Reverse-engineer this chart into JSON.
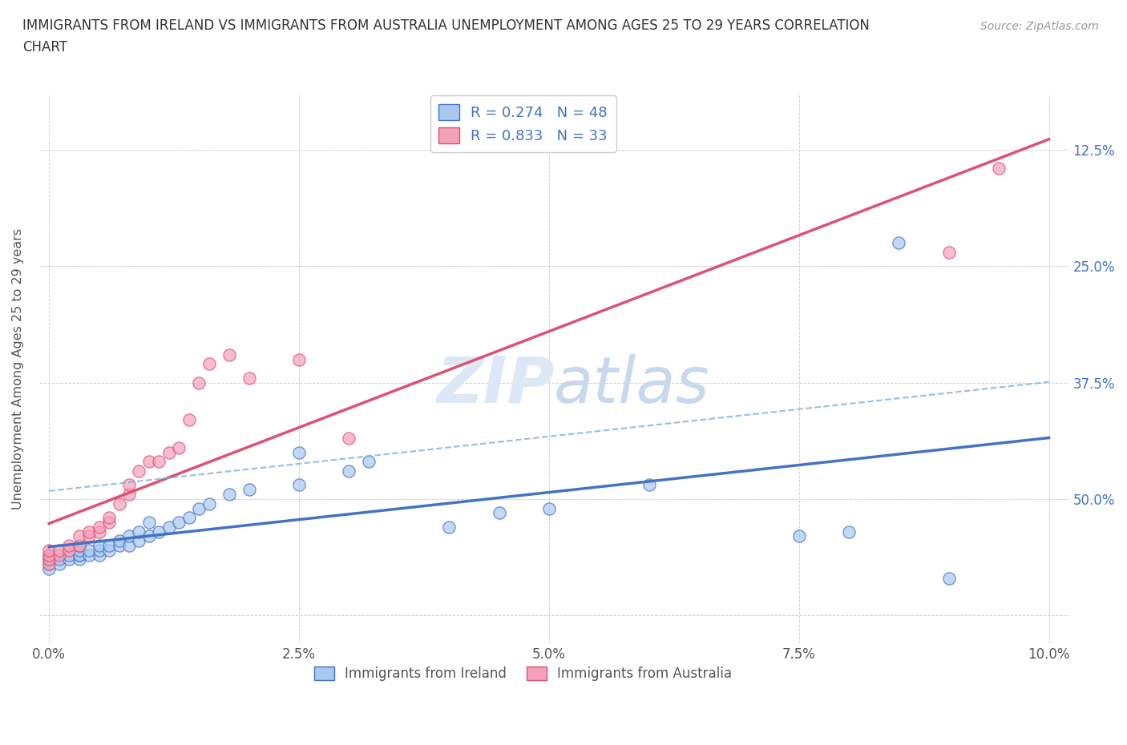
{
  "title_line1": "IMMIGRANTS FROM IRELAND VS IMMIGRANTS FROM AUSTRALIA UNEMPLOYMENT AMONG AGES 25 TO 29 YEARS CORRELATION",
  "title_line2": "CHART",
  "source_text": "Source: ZipAtlas.com",
  "ylabel": "Unemployment Among Ages 25 to 29 years",
  "xticklabels": [
    "0.0%",
    "2.5%",
    "5.0%",
    "7.5%",
    "10.0%"
  ],
  "yticklabels_right": [
    "50.0%",
    "37.5%",
    "25.0%",
    "12.5%"
  ],
  "xlim": [
    -0.001,
    0.102
  ],
  "ylim": [
    -0.03,
    0.56
  ],
  "yticks": [
    0.0,
    0.125,
    0.25,
    0.375,
    0.5
  ],
  "yticks_right": [
    0.125,
    0.25,
    0.375,
    0.5
  ],
  "xticks": [
    0.0,
    0.025,
    0.05,
    0.075,
    0.1
  ],
  "legend_label1": "R = 0.274   N = 48",
  "legend_label2": "R = 0.833   N = 33",
  "color_ireland": "#a8c8f0",
  "color_australia": "#f4a0b8",
  "color_trendline_ireland": "#4472c4",
  "color_trendline_australia": "#e05070",
  "color_dashed": "#7ab0e0",
  "watermark_color": "#dce8f5",
  "ireland_x": [
    0.0,
    0.0,
    0.0,
    0.0,
    0.001,
    0.001,
    0.002,
    0.002,
    0.003,
    0.003,
    0.003,
    0.003,
    0.003,
    0.004,
    0.004,
    0.005,
    0.005,
    0.005,
    0.006,
    0.006,
    0.007,
    0.007,
    0.008,
    0.008,
    0.009,
    0.009,
    0.01,
    0.01,
    0.011,
    0.012,
    0.013,
    0.014,
    0.015,
    0.016,
    0.018,
    0.02,
    0.025,
    0.025,
    0.03,
    0.032,
    0.04,
    0.045,
    0.05,
    0.06,
    0.075,
    0.08,
    0.085,
    0.09
  ],
  "ireland_y": [
    0.05,
    0.055,
    0.06,
    0.065,
    0.055,
    0.06,
    0.06,
    0.065,
    0.06,
    0.065,
    0.065,
    0.07,
    0.075,
    0.065,
    0.07,
    0.065,
    0.07,
    0.075,
    0.07,
    0.075,
    0.075,
    0.08,
    0.075,
    0.085,
    0.08,
    0.09,
    0.085,
    0.1,
    0.09,
    0.095,
    0.1,
    0.105,
    0.115,
    0.12,
    0.13,
    0.135,
    0.14,
    0.175,
    0.155,
    0.165,
    0.095,
    0.11,
    0.115,
    0.14,
    0.085,
    0.09,
    0.4,
    0.04
  ],
  "australia_x": [
    0.0,
    0.0,
    0.0,
    0.0,
    0.001,
    0.001,
    0.002,
    0.002,
    0.003,
    0.003,
    0.004,
    0.004,
    0.005,
    0.005,
    0.006,
    0.006,
    0.007,
    0.008,
    0.008,
    0.009,
    0.01,
    0.011,
    0.012,
    0.013,
    0.014,
    0.015,
    0.016,
    0.018,
    0.02,
    0.025,
    0.03,
    0.09,
    0.095
  ],
  "australia_y": [
    0.055,
    0.06,
    0.065,
    0.07,
    0.065,
    0.07,
    0.07,
    0.075,
    0.075,
    0.085,
    0.085,
    0.09,
    0.09,
    0.095,
    0.1,
    0.105,
    0.12,
    0.13,
    0.14,
    0.155,
    0.165,
    0.165,
    0.175,
    0.18,
    0.21,
    0.25,
    0.27,
    0.28,
    0.255,
    0.275,
    0.19,
    0.39,
    0.48
  ]
}
